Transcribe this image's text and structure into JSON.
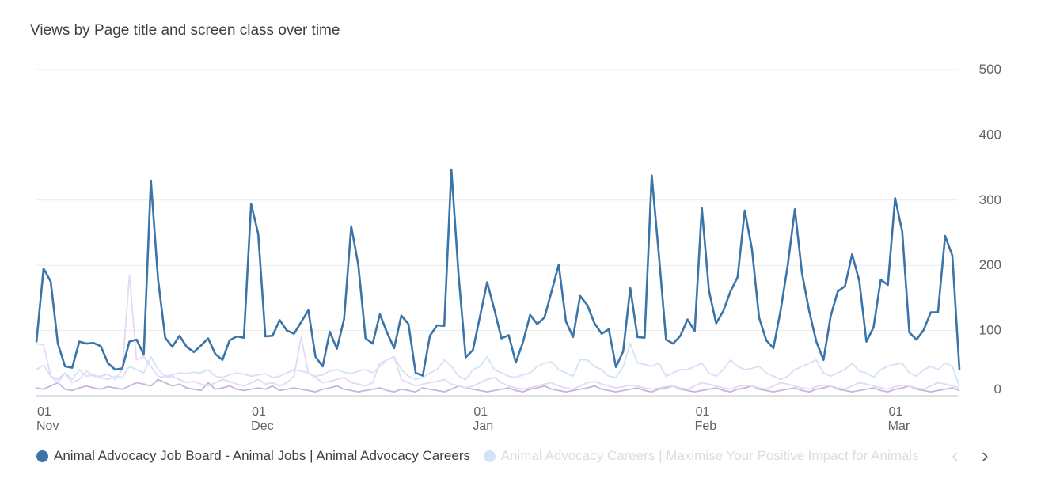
{
  "chart_data": {
    "type": "line",
    "title": "Views by Page title and screen class over time",
    "y_ticks": [
      "500",
      "400",
      "300",
      "200",
      "100",
      "0"
    ],
    "ylim": [
      0,
      500
    ],
    "x_ticks": [
      {
        "day": "01",
        "month": "Nov",
        "index": 0
      },
      {
        "day": "01",
        "month": "Dec",
        "index": 30
      },
      {
        "day": "01",
        "month": "Jan",
        "index": 61
      },
      {
        "day": "01",
        "month": "Feb",
        "index": 92
      },
      {
        "day": "01",
        "month": "Mar",
        "index": 119
      }
    ],
    "x_range": [
      "2023-11-01",
      "2024-03-11"
    ],
    "grid": true,
    "legend_position": "bottom",
    "series": [
      {
        "name": "Animal Advocacy Job Board - Animal Jobs | Animal Advocacy Careers",
        "color": "#3a74a8",
        "values": [
          82,
          195,
          175,
          80,
          45,
          43,
          83,
          80,
          81,
          76,
          50,
          40,
          42,
          83,
          86,
          63,
          330,
          178,
          89,
          75,
          92,
          75,
          67,
          77,
          88,
          64,
          55,
          85,
          91,
          89,
          294,
          248,
          91,
          92,
          116,
          100,
          95,
          113,
          131,
          60,
          45,
          98,
          72,
          118,
          260,
          200,
          88,
          80,
          125,
          97,
          73,
          123,
          110,
          35,
          31,
          92,
          108,
          107,
          347,
          185,
          59,
          70,
          122,
          174,
          132,
          88,
          93,
          51,
          82,
          124,
          110,
          120,
          160,
          201,
          114,
          90,
          153,
          139,
          111,
          95,
          102,
          44,
          68,
          165,
          90,
          89,
          338,
          215,
          86,
          80,
          92,
          117,
          99,
          288,
          161,
          111,
          130,
          160,
          182,
          284,
          225,
          120,
          85,
          73,
          130,
          200,
          286,
          188,
          130,
          83,
          55,
          122,
          160,
          168,
          217,
          176,
          83,
          105,
          178,
          170,
          303,
          252,
          97,
          86,
          101,
          128,
          128,
          245,
          215,
          40
        ],
        "faded": false
      },
      {
        "name": "Animal Advocacy Careers | Maximise Your Positive Impact for Animals",
        "color": "#d4e2f7",
        "values": [
          40,
          47,
          30,
          20,
          35,
          25,
          40,
          30,
          32,
          28,
          25,
          30,
          28,
          45,
          40,
          35,
          60,
          40,
          30,
          32,
          35,
          34,
          36,
          35,
          40,
          30,
          28,
          32,
          35,
          33,
          30,
          32,
          34,
          28,
          30,
          35,
          40,
          38,
          35,
          30,
          32,
          38,
          40,
          36,
          34,
          38,
          40,
          35,
          45,
          55,
          60,
          40,
          30,
          25,
          28,
          35,
          40,
          55,
          45,
          30,
          25,
          40,
          45,
          60,
          40,
          35,
          30,
          28,
          32,
          35,
          45,
          50,
          52,
          40,
          35,
          30,
          55,
          55,
          45,
          40,
          30,
          28,
          45,
          80,
          50,
          48,
          45,
          50,
          30,
          35,
          40,
          40,
          45,
          50,
          35,
          30,
          40,
          55,
          45,
          40,
          42,
          45,
          35,
          30,
          25,
          30,
          40,
          45,
          50,
          55,
          35,
          30,
          35,
          40,
          50,
          38,
          35,
          28,
          40,
          45,
          48,
          50,
          35,
          30,
          40,
          45,
          40,
          50,
          45,
          15
        ]
      },
      {
        "name": "",
        "color": "#e4d8f2",
        "values": [
          80,
          78,
          30,
          25,
          35,
          20,
          25,
          38,
          30,
          30,
          33,
          25,
          40,
          185,
          55,
          60,
          45,
          30,
          28,
          30,
          25,
          20,
          22,
          18,
          15,
          20,
          25,
          22,
          18,
          15,
          20,
          25,
          18,
          20,
          15,
          20,
          30,
          90,
          35,
          28,
          20,
          22,
          25,
          28,
          20,
          18,
          15,
          20,
          50,
          55,
          60,
          25,
          20,
          15,
          18,
          20,
          22,
          25,
          18,
          15,
          12,
          15,
          20,
          25,
          28,
          20,
          15,
          12,
          10,
          12,
          15,
          18,
          20,
          15,
          12,
          10,
          15,
          20,
          22,
          18,
          15,
          12,
          14,
          16,
          15,
          12,
          10,
          12,
          14,
          15,
          12,
          10,
          15,
          20,
          18,
          15,
          12,
          10,
          14,
          16,
          15,
          12,
          10,
          15,
          20,
          18,
          15,
          12,
          10,
          14,
          16,
          15,
          12,
          10,
          15,
          20,
          18,
          15,
          12,
          10,
          14,
          16,
          15,
          12,
          10,
          15,
          20,
          18,
          15,
          12
        ]
      },
      {
        "name": "",
        "color": "#c9b2e0",
        "values": [
          12,
          10,
          15,
          20,
          10,
          8,
          12,
          15,
          12,
          10,
          14,
          12,
          10,
          15,
          20,
          18,
          15,
          25,
          20,
          15,
          18,
          12,
          10,
          8,
          20,
          10,
          12,
          15,
          10,
          8,
          10,
          12,
          10,
          15,
          8,
          10,
          12,
          10,
          8,
          6,
          10,
          12,
          15,
          10,
          8,
          6,
          8,
          10,
          12,
          8,
          6,
          10,
          8,
          6,
          12,
          10,
          8,
          6,
          10,
          15,
          12,
          10,
          8,
          6,
          8,
          10,
          12,
          8,
          6,
          10,
          12,
          15,
          10,
          8,
          6,
          8,
          10,
          12,
          15,
          10,
          8,
          6,
          8,
          10,
          12,
          8,
          6,
          10,
          12,
          15,
          10,
          8,
          6,
          8,
          10,
          12,
          8,
          6,
          10,
          12,
          15,
          10,
          8,
          6,
          8,
          10,
          12,
          8,
          6,
          10,
          12,
          15,
          10,
          8,
          6,
          8,
          10,
          12,
          8,
          6,
          10,
          12,
          15,
          10,
          8,
          6,
          8,
          10,
          12,
          8
        ]
      }
    ]
  },
  "legend": {
    "items": [
      {
        "label": "Animal Advocacy Job Board - Animal Jobs | Animal Advocacy Careers",
        "color": "#3a74a8"
      },
      {
        "label": "Animal Advocacy Careers | Maximise Your Positive Impact for Animals",
        "color": "#d4e2f7"
      }
    ],
    "prev_glyph": "‹",
    "next_glyph": "›"
  }
}
